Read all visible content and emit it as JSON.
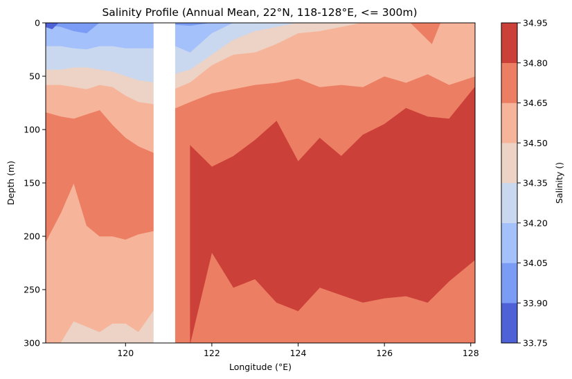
{
  "chart_data": {
    "type": "heatmap",
    "subtype": "filled-contour",
    "title": "Salinity Profile (Annual Mean, 22°N, 118-128°E, <= 300m)",
    "xlabel": "Longitude (°E)",
    "ylabel": "Depth (m)",
    "xlim": [
      118.15,
      128.1
    ],
    "ylim": [
      300,
      0
    ],
    "y_inverted": true,
    "x_ticks": [
      120,
      122,
      124,
      126,
      128
    ],
    "y_ticks": [
      0,
      50,
      100,
      150,
      200,
      250,
      300
    ],
    "data_gap": {
      "x_from": 120.65,
      "x_to": 121.15
    },
    "colorbar": {
      "label": "Salinity ()",
      "levels": [
        33.75,
        33.9,
        34.05,
        34.2,
        34.35,
        34.5,
        34.65,
        34.8,
        34.95
      ],
      "level_labels": [
        "33.75",
        "33.90",
        "34.05",
        "34.20",
        "34.35",
        "34.50",
        "34.65",
        "34.80",
        "34.95"
      ],
      "colors": [
        "#4e61d6",
        "#7b9cf4",
        "#a5c1fb",
        "#cad8ef",
        "#ecd3c5",
        "#f6b59a",
        "#ec7e63",
        "#cc403a"
      ]
    },
    "west_segment": {
      "x": [
        118.15,
        118.5,
        118.8,
        119.1,
        119.4,
        119.7,
        120.0,
        120.3,
        120.65
      ],
      "boundaries_depth_m": {
        "34.05": [
          2,
          4,
          8,
          10,
          0,
          0,
          0,
          0,
          0
        ],
        "34.20": [
          22,
          22,
          24,
          25,
          22,
          22,
          24,
          24,
          24
        ],
        "34.35": [
          44,
          44,
          42,
          42,
          44,
          46,
          50,
          54,
          56
        ],
        "34.50": [
          58,
          58,
          60,
          62,
          58,
          60,
          68,
          74,
          76
        ],
        "34.65": [
          84,
          88,
          90,
          86,
          82,
          96,
          108,
          116,
          122
        ],
        "34.80_lower": [
          205,
          178,
          150,
          190,
          200,
          200,
          203,
          198,
          195
        ]
      },
      "bottom_34.35_patch_top_m": [
        300,
        300,
        280,
        285,
        290,
        282,
        282,
        290,
        270
      ]
    },
    "east_segment": {
      "x": [
        121.15,
        121.5,
        122.0,
        122.5,
        123.0,
        123.5,
        124.0,
        124.5,
        125.0,
        125.5,
        126.0,
        126.5,
        127.0,
        127.5,
        128.1
      ],
      "boundaries_depth_m": {
        "34.05": [
          2,
          3,
          0,
          0,
          0,
          0,
          0,
          0,
          0,
          0,
          0,
          0,
          0,
          0,
          0
        ],
        "34.20": [
          22,
          28,
          10,
          0,
          0,
          0,
          0,
          0,
          0,
          0,
          0,
          0,
          0,
          0,
          0
        ],
        "34.35": [
          48,
          44,
          30,
          16,
          8,
          4,
          0,
          0,
          0,
          0,
          0,
          0,
          0,
          0,
          0
        ],
        "34.50": [
          62,
          56,
          40,
          30,
          28,
          20,
          10,
          8,
          4,
          0,
          0,
          0,
          0,
          0,
          0
        ],
        "34.65": [
          80,
          74,
          66,
          62,
          58,
          56,
          52,
          60,
          58,
          60,
          50,
          56,
          48,
          58,
          50
        ],
        "34.80_upper": [
          300,
          115,
          135,
          125,
          110,
          92,
          130,
          108,
          125,
          105,
          95,
          80,
          88,
          90,
          60
        ],
        "34.80_lower": [
          300,
          300,
          215,
          248,
          240,
          262,
          270,
          248,
          255,
          262,
          258,
          256,
          262,
          242,
          222
        ]
      }
    }
  }
}
